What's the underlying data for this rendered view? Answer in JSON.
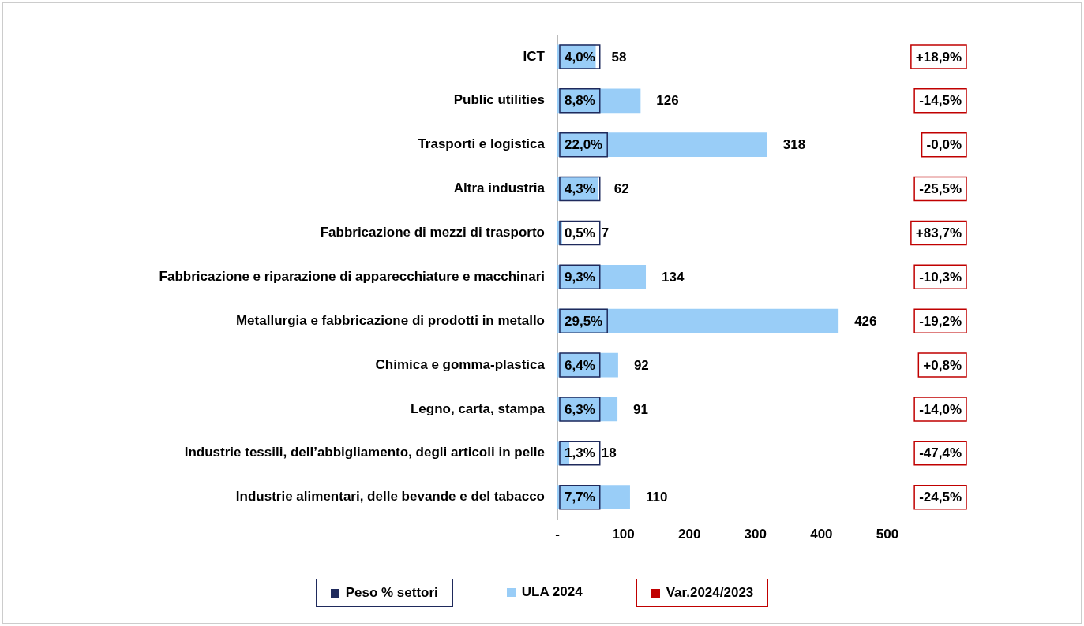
{
  "chart_data": {
    "type": "bar",
    "orientation": "horizontal",
    "categories": [
      "ICT",
      "Public utilities",
      "Trasporti e logistica",
      "Altra industria",
      "Fabbricazione di mezzi di trasporto",
      "Fabbricazione e riparazione di apparecchiature e macchinari",
      "Metallurgia e fabbricazione di prodotti in metallo",
      "Chimica e gomma-plastica",
      "Legno, carta, stampa",
      "Industrie tessili, dell’abbigliamento, degli articoli in pelle",
      "Industrie alimentari, delle bevande e del tabacco"
    ],
    "series": [
      {
        "name": "Peso % settori",
        "color": "#1f2a5c",
        "values": [
          null,
          null,
          null,
          null,
          null,
          null,
          null,
          null,
          null,
          null,
          null
        ],
        "value_labels": [
          "4,0%",
          "8,8%",
          "22,0%",
          "4,3%",
          "0,5%",
          "9,3%",
          "29,5%",
          "6,4%",
          "6,3%",
          "1,3%",
          "7,7%"
        ]
      },
      {
        "name": "ULA 2024",
        "color": "#99cdf7",
        "values": [
          58,
          126,
          318,
          62,
          7,
          134,
          426,
          92,
          91,
          18,
          110
        ]
      },
      {
        "name": "Var.2024/2023",
        "color": "#c00000",
        "values": [
          null,
          null,
          null,
          null,
          null,
          null,
          null,
          null,
          null,
          null,
          null
        ],
        "value_labels": [
          "+18,9%",
          "-14,5%",
          "-0,0%",
          "-25,5%",
          "+83,7%",
          "-10,3%",
          "-19,2%",
          "+0,8%",
          "-14,0%",
          "-47,4%",
          "-24,5%"
        ]
      }
    ],
    "data_labels": true,
    "xlim": [
      0,
      500
    ],
    "xticks": [
      {
        "value": 0,
        "label": "-"
      },
      100,
      200,
      300,
      400,
      500
    ],
    "grid": false,
    "legend": "bottom"
  }
}
